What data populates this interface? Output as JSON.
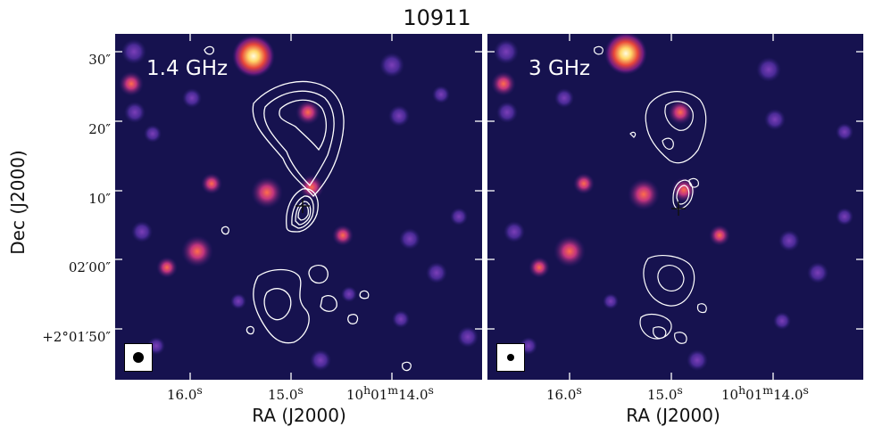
{
  "title": "10911",
  "axes": {
    "ylabel": "Dec (J2000)",
    "xlabel": "RA (J2000)",
    "y_ticks": [
      "30″",
      "20″",
      "10″",
      "02′00″",
      "+2°01′50″"
    ],
    "x_ticks": [
      "16.0",
      "15.0",
      "10",
      "01",
      "14.0"
    ],
    "x_tick_suffix": "s",
    "x_tick_h": "h",
    "x_tick_m": "m"
  },
  "panels": [
    {
      "label": "1.4 GHz",
      "beam": "circle-large"
    },
    {
      "label": "3 GHz",
      "beam": "circle-small"
    }
  ],
  "colors": {
    "background_map": "#16124f",
    "contour": "#ffffff",
    "hot_source": "#fff2a8"
  }
}
